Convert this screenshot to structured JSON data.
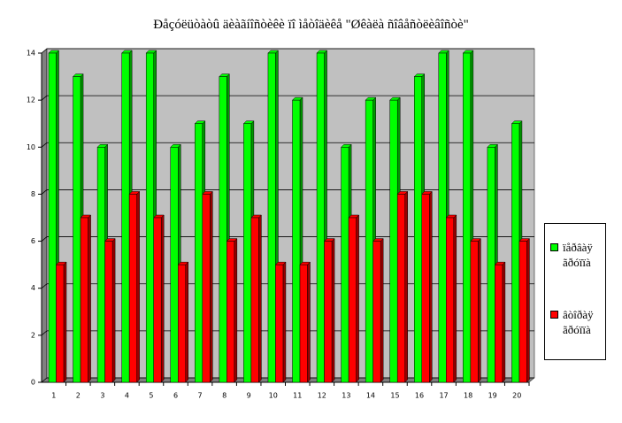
{
  "chart_data": {
    "type": "bar",
    "title": "Ðåçóëüòàòû äèàãíîñòèêè ïî ìåòîäèêå \"Øêàëà ñîâåñòëèâîñòè\"",
    "categories": [
      "1",
      "2",
      "3",
      "4",
      "5",
      "6",
      "7",
      "8",
      "9",
      "10",
      "11",
      "12",
      "13",
      "14",
      "15",
      "16",
      "17",
      "18",
      "19",
      "20"
    ],
    "series": [
      {
        "name": "ïåðâàÿ ãðóïïà",
        "color": "#00ff00",
        "values": [
          14,
          13,
          10,
          14,
          14,
          10,
          11,
          13,
          11,
          14,
          12,
          14,
          10,
          12,
          12,
          13,
          14,
          14,
          10,
          11
        ]
      },
      {
        "name": "âòîðàÿ ãðóïïà",
        "color": "#ff0000",
        "values": [
          5,
          7,
          6,
          8,
          7,
          5,
          8,
          6,
          7,
          5,
          5,
          6,
          7,
          6,
          8,
          8,
          7,
          6,
          5,
          6
        ]
      }
    ],
    "ylim": [
      0,
      14
    ],
    "yticks": [
      0,
      2,
      4,
      6,
      8,
      10,
      12,
      14
    ],
    "grid": true
  }
}
